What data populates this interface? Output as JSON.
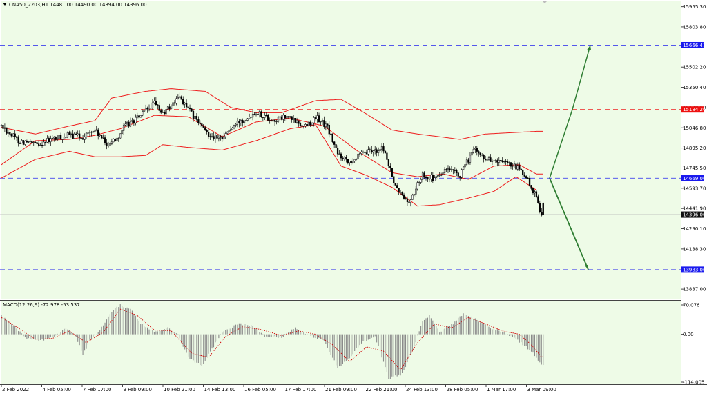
{
  "header": {
    "symbol_text": "CNA50_2203,H1  14481.00 14490.00 14394.00 14396.00"
  },
  "macd": {
    "label": "MACD(12,26,9) -72.978 -53.537"
  },
  "colors": {
    "background": "#eefbe7",
    "bollinger": "#ee1c1c",
    "arrow": "#2e7d32",
    "level_blue": "#2222ee",
    "level_red": "#ee2222",
    "candle": "#000000",
    "signal": "#d00000"
  },
  "chart_data": [
    {
      "type": "candlestick",
      "title": "CNA50_2203,H1",
      "ohlc_last": {
        "open": 14481.0,
        "high": 14490.0,
        "low": 14394.0,
        "close": 14396.0
      },
      "y_ticks": [
        "15955.30",
        "15803.80",
        "15502.20",
        "15350.40",
        "15198.60",
        "15046.80",
        "14895.20",
        "14745.50",
        "14593.70",
        "14441.90",
        "14290.10",
        "14138.30",
        "13837.00"
      ],
      "ylim": [
        13760,
        16000
      ],
      "x_ticks": [
        "2 Feb 2022",
        "4 Feb 05:00",
        "7 Feb 17:00",
        "9 Feb 09:00",
        "10 Feb 21:00",
        "14 Feb 13:00",
        "16 Feb 05:00",
        "17 Feb 17:00",
        "21 Feb 09:00",
        "22 Feb 21:00",
        "24 Feb 13:00",
        "28 Feb 05:00",
        "1 Mar 17:00",
        "3 Mar 09:00"
      ],
      "close_anchors": [
        [
          0,
          15060
        ],
        [
          10,
          14950
        ],
        [
          20,
          14920
        ],
        [
          30,
          14960
        ],
        [
          40,
          14990
        ],
        [
          48,
          14980
        ],
        [
          55,
          15030
        ],
        [
          62,
          14920
        ],
        [
          68,
          14970
        ],
        [
          72,
          15050
        ],
        [
          80,
          15120
        ],
        [
          90,
          15230
        ],
        [
          95,
          15150
        ],
        [
          105,
          15280
        ],
        [
          112,
          15150
        ],
        [
          120,
          15020
        ],
        [
          128,
          14960
        ],
        [
          140,
          15090
        ],
        [
          150,
          15170
        ],
        [
          160,
          15100
        ],
        [
          168,
          15130
        ],
        [
          178,
          15060
        ],
        [
          186,
          15120
        ],
        [
          192,
          15050
        ],
        [
          198,
          14850
        ],
        [
          205,
          14800
        ],
        [
          215,
          14860
        ],
        [
          225,
          14890
        ],
        [
          232,
          14600
        ],
        [
          240,
          14480
        ],
        [
          248,
          14700
        ],
        [
          255,
          14660
        ],
        [
          262,
          14730
        ],
        [
          270,
          14690
        ],
        [
          278,
          14880
        ],
        [
          285,
          14820
        ],
        [
          292,
          14790
        ],
        [
          298,
          14770
        ],
        [
          305,
          14740
        ],
        [
          310,
          14650
        ],
        [
          315,
          14520
        ],
        [
          318,
          14396
        ]
      ],
      "bollinger": {
        "upper": [
          [
            0,
            15050
          ],
          [
            20,
            15000
          ],
          [
            40,
            15060
          ],
          [
            55,
            15100
          ],
          [
            65,
            15270
          ],
          [
            85,
            15320
          ],
          [
            100,
            15340
          ],
          [
            120,
            15320
          ],
          [
            135,
            15200
          ],
          [
            150,
            15160
          ],
          [
            165,
            15160
          ],
          [
            185,
            15250
          ],
          [
            200,
            15260
          ],
          [
            215,
            15150
          ],
          [
            230,
            15030
          ],
          [
            245,
            15000
          ],
          [
            258,
            14980
          ],
          [
            270,
            14960
          ],
          [
            285,
            15000
          ],
          [
            300,
            15010
          ],
          [
            315,
            15020
          ]
        ],
        "middle": [
          [
            0,
            14770
          ],
          [
            20,
            14950
          ],
          [
            40,
            14960
          ],
          [
            55,
            14990
          ],
          [
            70,
            15040
          ],
          [
            90,
            15140
          ],
          [
            110,
            15130
          ],
          [
            130,
            14980
          ],
          [
            150,
            15090
          ],
          [
            170,
            15120
          ],
          [
            190,
            15060
          ],
          [
            210,
            14870
          ],
          [
            230,
            14710
          ],
          [
            245,
            14680
          ],
          [
            260,
            14700
          ],
          [
            275,
            14660
          ],
          [
            290,
            14760
          ],
          [
            305,
            14770
          ],
          [
            315,
            14700
          ]
        ],
        "lower": [
          [
            0,
            14670
          ],
          [
            20,
            14810
          ],
          [
            40,
            14870
          ],
          [
            55,
            14830
          ],
          [
            70,
            14830
          ],
          [
            85,
            14840
          ],
          [
            95,
            14920
          ],
          [
            110,
            14900
          ],
          [
            130,
            14880
          ],
          [
            150,
            14950
          ],
          [
            170,
            15040
          ],
          [
            185,
            15070
          ],
          [
            200,
            14760
          ],
          [
            215,
            14690
          ],
          [
            230,
            14600
          ],
          [
            245,
            14460
          ],
          [
            258,
            14470
          ],
          [
            275,
            14520
          ],
          [
            290,
            14570
          ],
          [
            303,
            14680
          ],
          [
            315,
            14580
          ]
        ]
      },
      "levels": [
        {
          "value": 15666.41,
          "label": "15666.41",
          "style": "dashed",
          "color": "blue"
        },
        {
          "value": 15184.26,
          "label": "15184.26",
          "style": "dashed",
          "color": "red"
        },
        {
          "value": 14669.06,
          "label": "14669.06",
          "style": "dashed",
          "color": "blue"
        },
        {
          "value": 14396.0,
          "label": "14396.00",
          "style": "solid",
          "color": "gray"
        },
        {
          "value": 13983.0,
          "label": "13983.00",
          "style": "dashed",
          "color": "blue"
        }
      ],
      "projection": {
        "start": 14669.06,
        "up_via": 15184.26,
        "up_target": 15666.41,
        "down_target": 13983.0
      }
    },
    {
      "type": "histogram",
      "title": "MACD(12,26,9)",
      "main": -72.978,
      "signal": -53.537,
      "y_ticks": [
        "70.076",
        "0.00",
        "-114.005"
      ],
      "ylim": [
        -114.005,
        70.076
      ],
      "hist_anchors": [
        [
          0,
          45
        ],
        [
          8,
          18
        ],
        [
          15,
          -10
        ],
        [
          22,
          -15
        ],
        [
          30,
          -8
        ],
        [
          38,
          15
        ],
        [
          44,
          -5
        ],
        [
          48,
          -50
        ],
        [
          52,
          -15
        ],
        [
          58,
          10
        ],
        [
          65,
          55
        ],
        [
          70,
          70
        ],
        [
          76,
          60
        ],
        [
          82,
          25
        ],
        [
          90,
          5
        ],
        [
          98,
          15
        ],
        [
          104,
          0
        ],
        [
          110,
          -55
        ],
        [
          118,
          -75
        ],
        [
          124,
          -35
        ],
        [
          130,
          5
        ],
        [
          140,
          25
        ],
        [
          148,
          20
        ],
        [
          155,
          -5
        ],
        [
          165,
          -8
        ],
        [
          173,
          15
        ],
        [
          182,
          -3
        ],
        [
          190,
          -15
        ],
        [
          198,
          -80
        ],
        [
          205,
          -55
        ],
        [
          212,
          -20
        ],
        [
          220,
          -5
        ],
        [
          228,
          -105
        ],
        [
          236,
          -95
        ],
        [
          242,
          -40
        ],
        [
          248,
          30
        ],
        [
          252,
          45
        ],
        [
          258,
          5
        ],
        [
          266,
          25
        ],
        [
          272,
          50
        ],
        [
          280,
          35
        ],
        [
          288,
          15
        ],
        [
          296,
          5
        ],
        [
          304,
          -15
        ],
        [
          312,
          -40
        ],
        [
          318,
          -73
        ]
      ],
      "signal_anchors": [
        [
          0,
          40
        ],
        [
          10,
          15
        ],
        [
          20,
          -12
        ],
        [
          30,
          -10
        ],
        [
          40,
          8
        ],
        [
          50,
          -20
        ],
        [
          60,
          5
        ],
        [
          70,
          60
        ],
        [
          80,
          45
        ],
        [
          90,
          10
        ],
        [
          100,
          8
        ],
        [
          112,
          -45
        ],
        [
          122,
          -55
        ],
        [
          132,
          -5
        ],
        [
          142,
          18
        ],
        [
          152,
          12
        ],
        [
          165,
          -3
        ],
        [
          175,
          8
        ],
        [
          185,
          0
        ],
        [
          195,
          -25
        ],
        [
          205,
          -65
        ],
        [
          215,
          -30
        ],
        [
          225,
          -40
        ],
        [
          235,
          -85
        ],
        [
          245,
          -20
        ],
        [
          255,
          25
        ],
        [
          265,
          15
        ],
        [
          275,
          40
        ],
        [
          285,
          25
        ],
        [
          295,
          8
        ],
        [
          305,
          0
        ],
        [
          312,
          -25
        ],
        [
          318,
          -54
        ]
      ]
    }
  ]
}
